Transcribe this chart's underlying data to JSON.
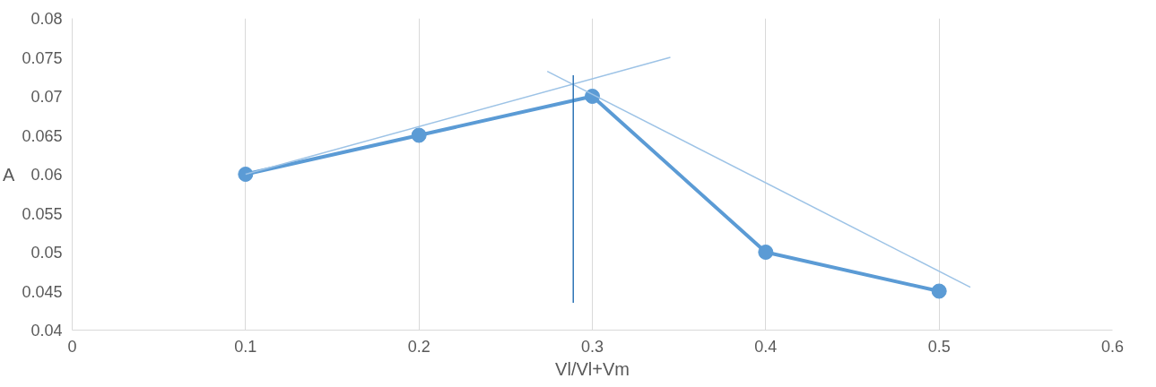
{
  "chart_data": {
    "type": "line",
    "xlabel": "Vl/Vl+Vm",
    "ylabel": "A",
    "x": [
      0.1,
      0.2,
      0.3,
      0.4,
      0.5
    ],
    "series": [
      {
        "color": "#5b9bd5",
        "values": [
          0.06,
          0.065,
          0.07,
          0.05,
          0.045
        ],
        "marker": "circle"
      },
      {
        "type": "line",
        "color": "#9dc3e6",
        "x": [
          0.1,
          0.345
        ],
        "values": [
          0.06,
          0.075
        ],
        "marker": "none"
      },
      {
        "type": "line",
        "color": "#9dc3e6",
        "x": [
          0.274,
          0.518
        ],
        "values": [
          0.0732,
          0.0455
        ],
        "marker": "none"
      },
      {
        "type": "line",
        "color": "#2e75b6",
        "x": [
          0.289,
          0.289
        ],
        "values": [
          0.0727,
          0.0435
        ],
        "marker": "none"
      }
    ],
    "xlim": [
      0,
      0.6
    ],
    "ylim": [
      0.04,
      0.08
    ],
    "xticks": [
      0,
      0.1,
      0.2,
      0.3,
      0.4,
      0.5,
      0.6
    ],
    "yticks": [
      0.04,
      0.045,
      0.05,
      0.055,
      0.06,
      0.065,
      0.07,
      0.075,
      0.08
    ],
    "grid": "x"
  }
}
